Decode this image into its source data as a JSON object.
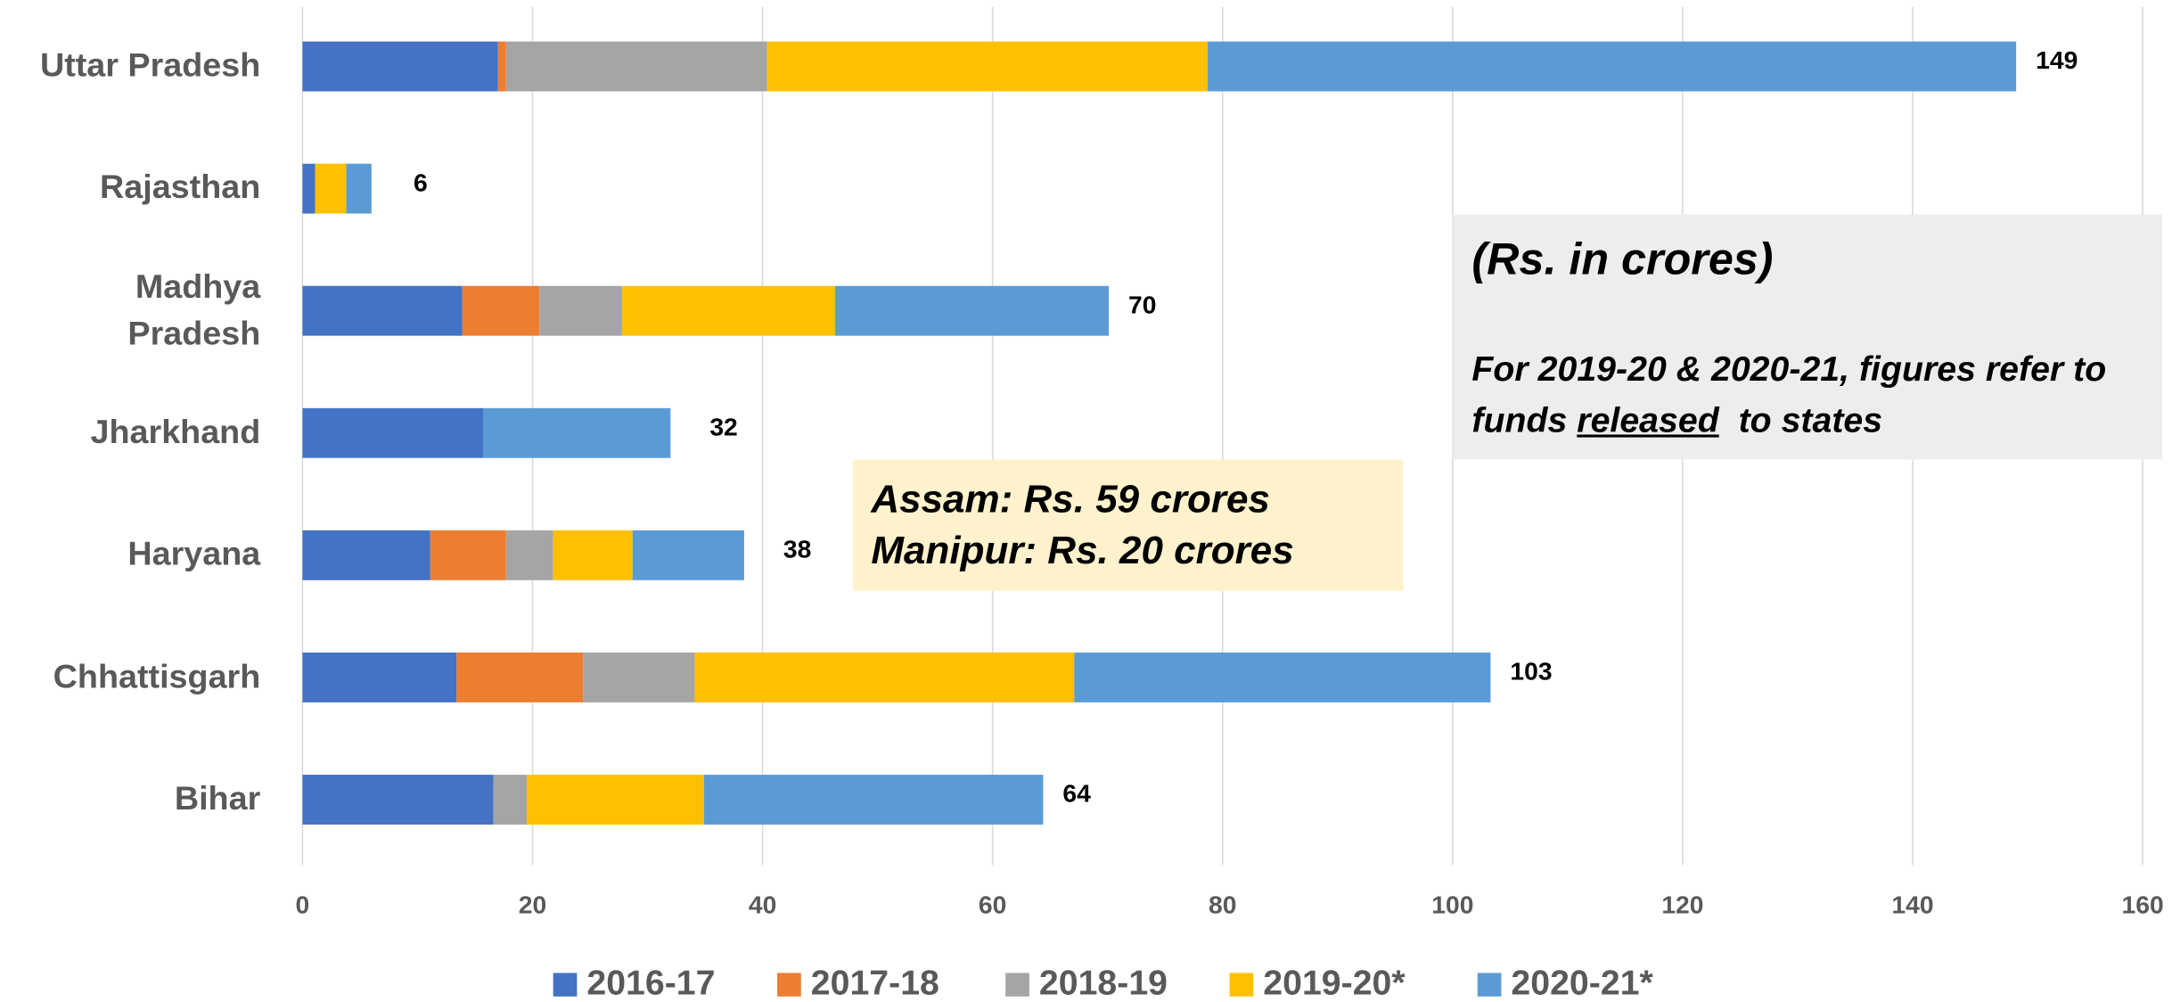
{
  "chart_data": {
    "type": "bar",
    "orientation": "horizontal",
    "stacked": true,
    "categories": [
      "Uttar Pradesh",
      "Rajasthan",
      "Madhya Pradesh",
      "Jharkhand",
      "Haryana",
      "Chhattisgarh",
      "Bihar"
    ],
    "series": [
      {
        "name": "2016-17",
        "color": "#4472c4",
        "values": [
          17,
          1.1,
          13.9,
          15.7,
          11.1,
          13.4,
          16.6
        ]
      },
      {
        "name": "2017-18",
        "color": "#ed7d31",
        "values": [
          0.7,
          0,
          6.7,
          0,
          6.6,
          11,
          0
        ]
      },
      {
        "name": "2018-19",
        "color": "#a5a5a5",
        "values": [
          22.7,
          0,
          7.2,
          0,
          4.1,
          9.7,
          2.9
        ]
      },
      {
        "name": "2019-20*",
        "color": "#ffc000",
        "values": [
          38.3,
          2.7,
          18.5,
          0,
          6.9,
          33,
          15.4
        ]
      },
      {
        "name": "2020-21*",
        "color": "#5b9bd5",
        "values": [
          70.3,
          2.2,
          23.8,
          16.3,
          9.7,
          36.2,
          29.5
        ]
      }
    ],
    "totals": [
      149,
      6,
      70,
      32,
      38,
      103,
      64
    ],
    "xlim": [
      0,
      160
    ],
    "xticks": [
      0,
      20,
      40,
      60,
      80,
      100,
      120,
      140,
      160
    ],
    "grid": true,
    "legend": "bottom",
    "unit_note": "(Rs. in crores)",
    "note": {
      "before": "For 2019-20 & 2020-21, figures refer to funds",
      "underlined": "released",
      "after": "to states"
    },
    "other_states": [
      "Assam: Rs. 59 crores",
      "Manipur: Rs. 20 crores"
    ]
  }
}
